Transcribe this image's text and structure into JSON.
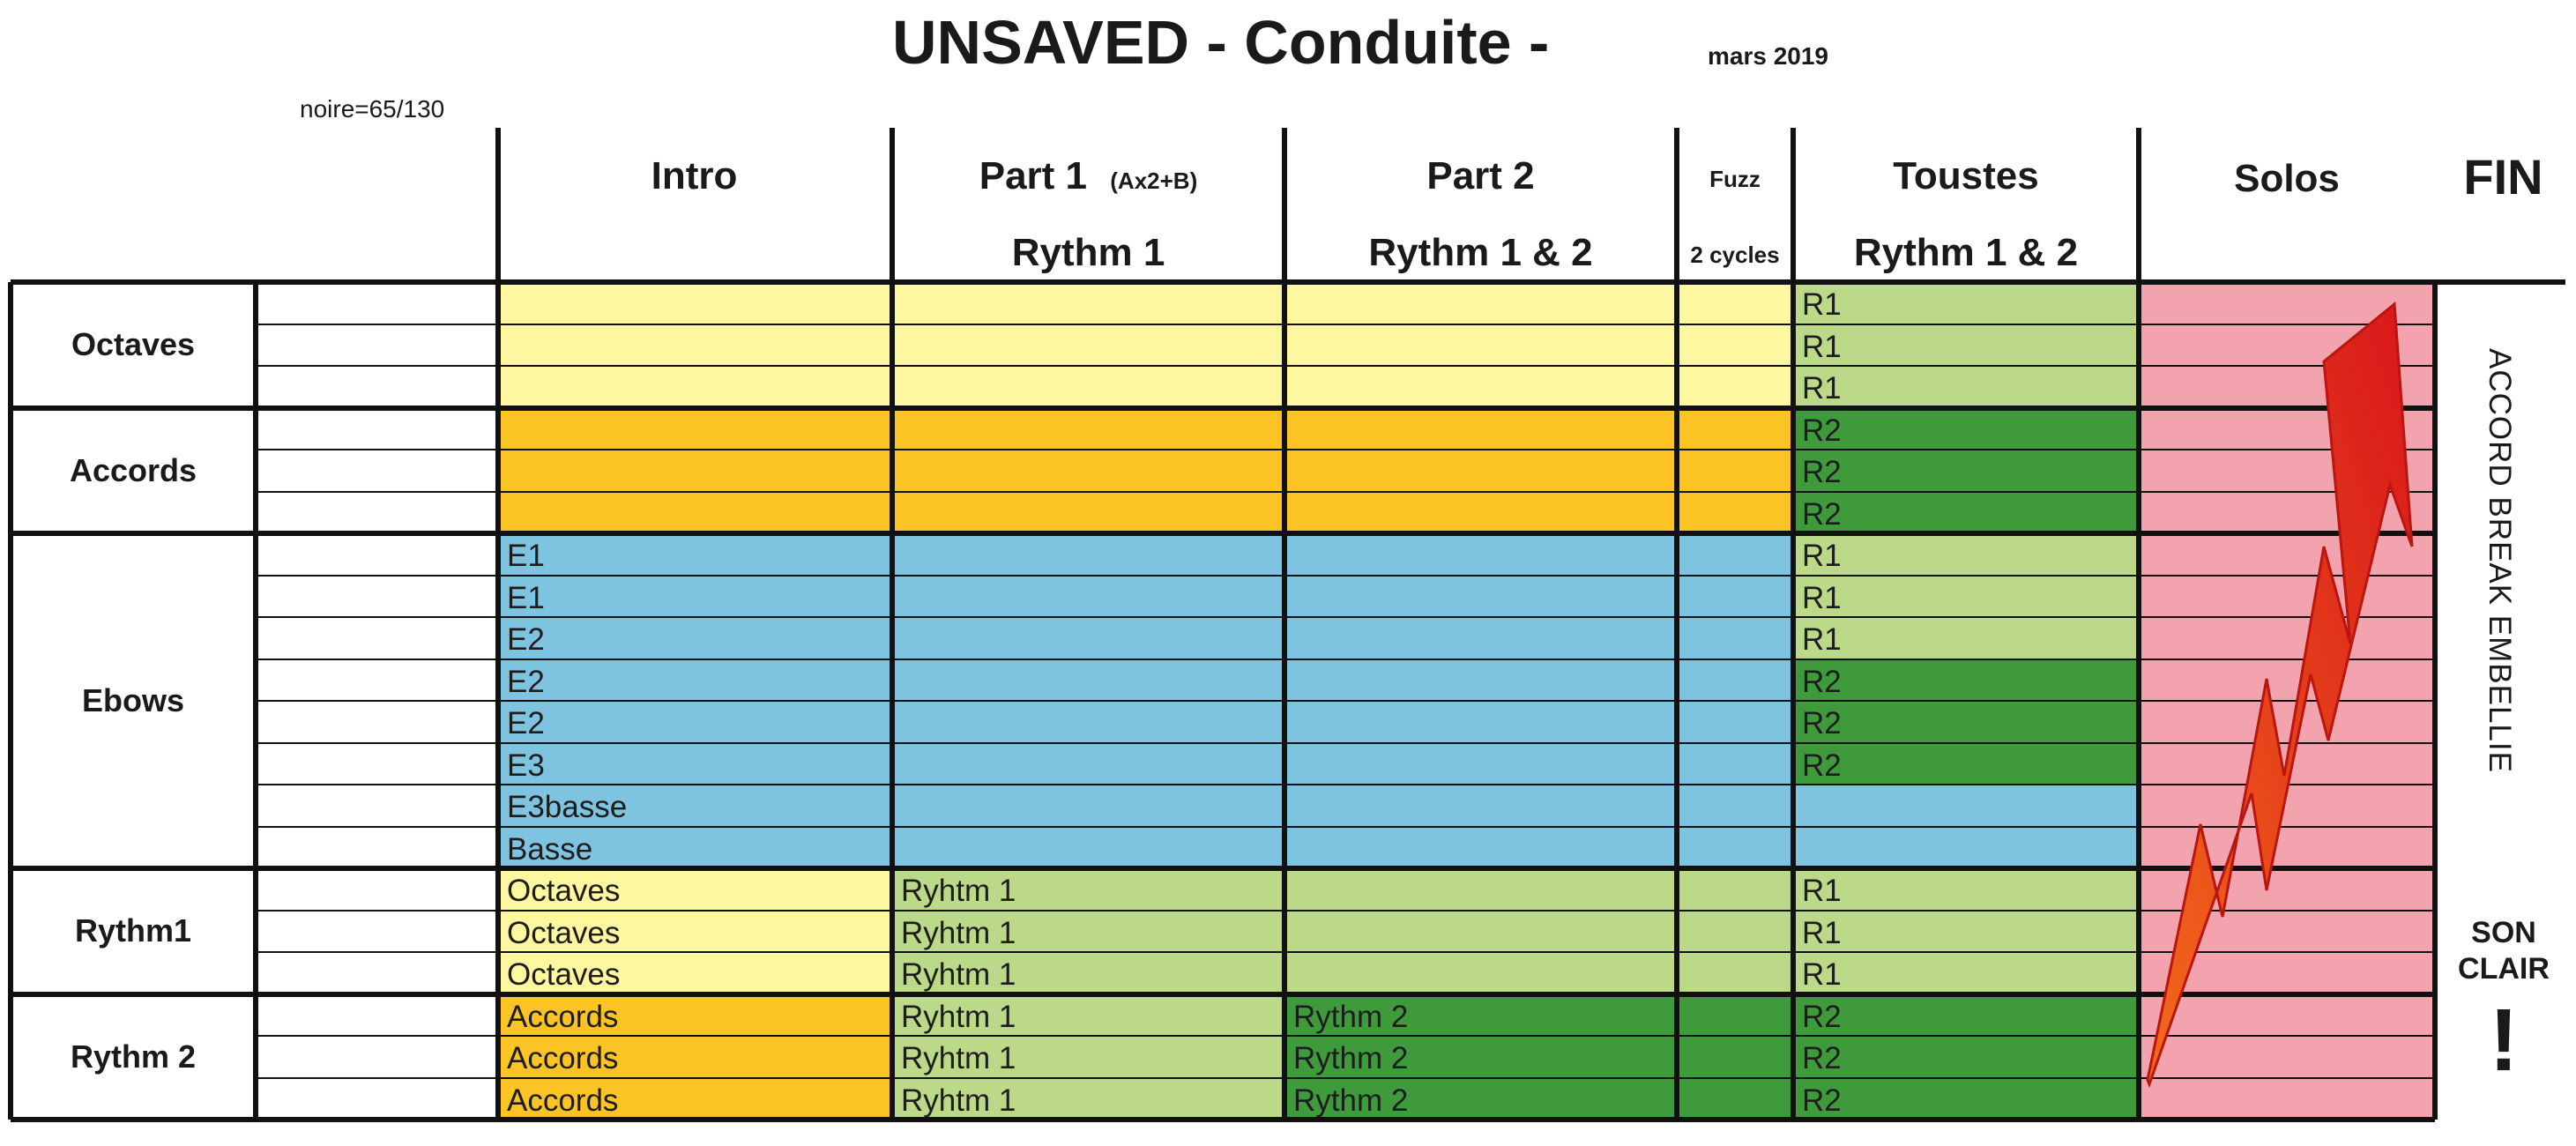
{
  "header": {
    "title": "UNSAVED  - Conduite -",
    "date": "mars 2019",
    "tempo": "noire=65/130"
  },
  "columns": {
    "intro": {
      "label": "Intro"
    },
    "part1": {
      "label": "Part 1",
      "note": "(Ax2+B)",
      "sub": "Rythm 1"
    },
    "part2": {
      "label": "Part 2",
      "sub": "Rythm 1 & 2"
    },
    "fuzz": {
      "label": "Fuzz",
      "sub": "2 cycles"
    },
    "toustes": {
      "label": "Toustes",
      "sub": "Rythm 1 & 2"
    },
    "solos": {
      "label": "Solos"
    },
    "fin": {
      "label": "FIN"
    }
  },
  "parts": [
    {
      "name": "Octaves",
      "lines": 3
    },
    {
      "name": "Accords",
      "lines": 3
    },
    {
      "name": "Ebows",
      "lines": 8
    },
    {
      "name": "Rythm1",
      "lines": 3
    },
    {
      "name": "Rythm 2",
      "lines": 3
    }
  ],
  "rows": [
    {
      "intro": "",
      "part1": "",
      "part2": "",
      "toustes": "R1"
    },
    {
      "intro": "",
      "part1": "",
      "part2": "",
      "toustes": "R1"
    },
    {
      "intro": "",
      "part1": "",
      "part2": "",
      "toustes": "R1"
    },
    {
      "intro": "",
      "part1": "",
      "part2": "",
      "toustes": "R2"
    },
    {
      "intro": "",
      "part1": "",
      "part2": "",
      "toustes": "R2"
    },
    {
      "intro": "",
      "part1": "",
      "part2": "",
      "toustes": "R2"
    },
    {
      "intro": "E1",
      "part1": "",
      "part2": "",
      "toustes": "R1"
    },
    {
      "intro": "E1",
      "part1": "",
      "part2": "",
      "toustes": "R1"
    },
    {
      "intro": "E2",
      "part1": "",
      "part2": "",
      "toustes": "R1"
    },
    {
      "intro": "E2",
      "part1": "",
      "part2": "",
      "toustes": "R2"
    },
    {
      "intro": "E2",
      "part1": "",
      "part2": "",
      "toustes": "R2"
    },
    {
      "intro": "E3",
      "part1": "",
      "part2": "",
      "toustes": "R2"
    },
    {
      "intro": "E3basse",
      "part1": "",
      "part2": "",
      "toustes": ""
    },
    {
      "intro": "Basse",
      "part1": "",
      "part2": "",
      "toustes": ""
    },
    {
      "intro": "Octaves",
      "part1": "Ryhtm 1",
      "part2": "",
      "toustes": "R1"
    },
    {
      "intro": "Octaves",
      "part1": "Ryhtm 1",
      "part2": "",
      "toustes": "R1"
    },
    {
      "intro": "Octaves",
      "part1": "Ryhtm 1",
      "part2": "",
      "toustes": "R1"
    },
    {
      "intro": "Accords",
      "part1": "Ryhtm 1",
      "part2": "Rythm 2",
      "toustes": "R2"
    },
    {
      "intro": "Accords",
      "part1": "Ryhtm 1",
      "part2": "Rythm 2",
      "toustes": "R2"
    },
    {
      "intro": "Accords",
      "part1": "Ryhtm 1",
      "part2": "Rythm 2",
      "toustes": "R2"
    }
  ],
  "colors": {
    "light_yellow": "#fdf7a0",
    "orange": "#fbc323",
    "blue": "#7ec3df",
    "light_green": "#bcd98a",
    "dark_green": "#3f9a3c",
    "pink": "#f3a3ad",
    "arrow": "#e8261a"
  },
  "annotations": {
    "vertical": "ACCORD BREAK EMBELLIE",
    "son_clair": "SON CLAIR",
    "exclaim": "!"
  },
  "icons": {
    "solo_arrow": "lightning-arrow-icon"
  }
}
